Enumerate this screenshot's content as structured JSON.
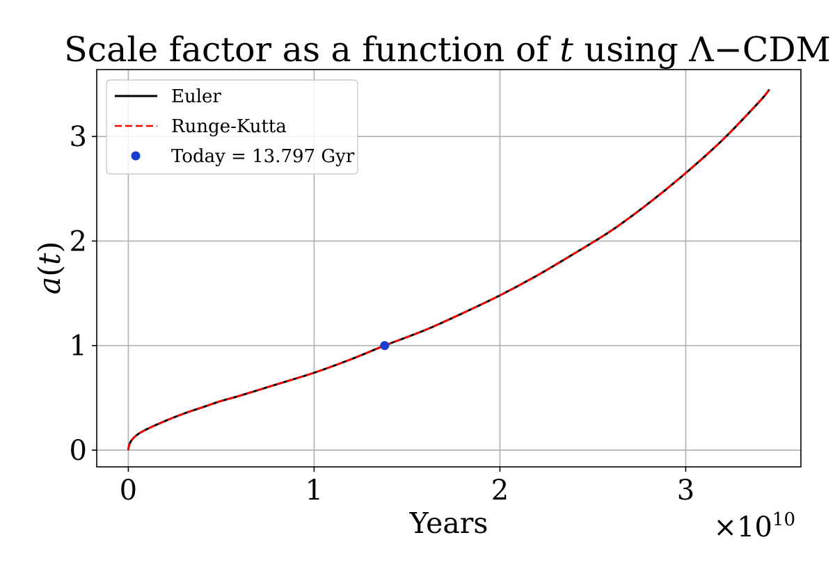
{
  "chart_data": {
    "type": "line",
    "title_plain": "Scale factor as a function of ",
    "title_var": "t",
    "title_suffix": " using Λ−CDM",
    "xlabel": "Years",
    "ylabel_fn": "a",
    "ylabel_open": "(",
    "ylabel_var": "t",
    "ylabel_close": ")",
    "x_offset": {
      "base": "×10",
      "exponent": "10"
    },
    "xlim": [
      -0.17,
      3.62
    ],
    "ylim": [
      -0.16,
      3.64
    ],
    "x_ticks": [
      {
        "value": 0,
        "label": "0"
      },
      {
        "value": 1,
        "label": "1"
      },
      {
        "value": 2,
        "label": "2"
      },
      {
        "value": 3,
        "label": "3"
      }
    ],
    "y_ticks": [
      {
        "value": 0,
        "label": "0"
      },
      {
        "value": 1,
        "label": "1"
      },
      {
        "value": 2,
        "label": "2"
      },
      {
        "value": 3,
        "label": "3"
      }
    ],
    "grid": true,
    "legend_position": "top-left",
    "series": [
      {
        "name": "Euler",
        "style": "solid",
        "color": "#000000",
        "x": [
          0.0,
          0.005,
          0.02,
          0.05,
          0.1,
          0.2,
          0.3,
          0.4,
          0.5,
          0.6,
          0.8,
          1.0,
          1.2,
          1.3797,
          1.6,
          1.8,
          2.0,
          2.2,
          2.4,
          2.6,
          2.8,
          3.0,
          3.2,
          3.4,
          3.45
        ],
        "y": [
          0.0,
          0.05,
          0.1,
          0.15,
          0.2,
          0.28,
          0.35,
          0.41,
          0.47,
          0.52,
          0.63,
          0.74,
          0.87,
          1.0,
          1.15,
          1.31,
          1.48,
          1.67,
          1.88,
          2.1,
          2.36,
          2.65,
          2.97,
          3.34,
          3.45
        ]
      },
      {
        "name": "Runge-Kutta",
        "style": "dashed",
        "color": "#ff0000",
        "x": [
          0.0,
          0.005,
          0.02,
          0.05,
          0.1,
          0.2,
          0.3,
          0.4,
          0.5,
          0.6,
          0.8,
          1.0,
          1.2,
          1.3797,
          1.6,
          1.8,
          2.0,
          2.2,
          2.4,
          2.6,
          2.8,
          3.0,
          3.2,
          3.4,
          3.45
        ],
        "y": [
          0.0,
          0.05,
          0.1,
          0.15,
          0.2,
          0.28,
          0.35,
          0.41,
          0.47,
          0.52,
          0.63,
          0.74,
          0.87,
          1.0,
          1.15,
          1.31,
          1.48,
          1.67,
          1.88,
          2.1,
          2.36,
          2.65,
          2.97,
          3.34,
          3.45
        ]
      },
      {
        "name": "Today = 13.797 Gyr",
        "style": "marker",
        "color": "#1a3fcc",
        "x": [
          1.3797
        ],
        "y": [
          1.0
        ]
      }
    ]
  }
}
